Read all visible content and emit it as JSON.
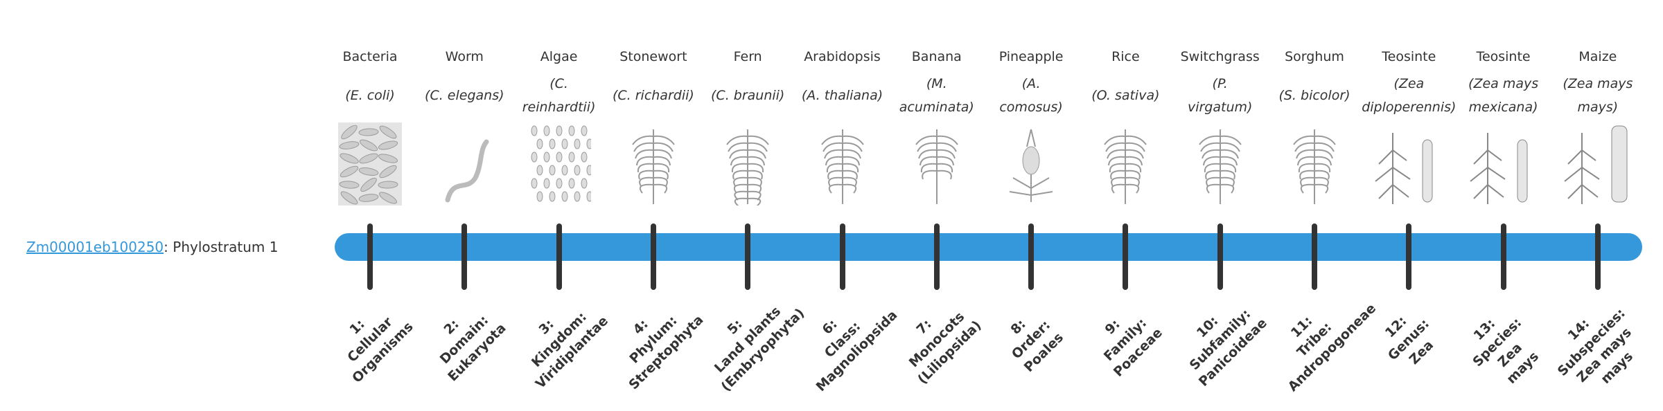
{
  "gene": {
    "id": "Zm00001eb100250",
    "suffix": ": Phylostratum 1"
  },
  "colors": {
    "bar": "#3498db",
    "tick": "#333333",
    "link": "#3498db"
  },
  "strata": [
    {
      "common": "Bacteria",
      "sci": "(E. coli)",
      "icon": "bacteria-illustration",
      "label": "1:\nCellular\nOrganisms"
    },
    {
      "common": "Worm",
      "sci": "(C. elegans)",
      "icon": "worm-illustration",
      "label": "2:\nDomain:\nEukaryota"
    },
    {
      "common": "Algae",
      "sci": "(C.\nreinhardtii)",
      "icon": "algae-illustration",
      "label": "3:\nKingdom:\nViridiplantae"
    },
    {
      "common": "Stonewort",
      "sci": "(C. richardii)",
      "icon": "stonewort-illustration",
      "label": "4:\nPhylum:\nStreptophyta"
    },
    {
      "common": "Fern",
      "sci": "(C. braunii)",
      "icon": "fern-illustration",
      "label": "5:\nLand plants\n(Embryophyta)"
    },
    {
      "common": "Arabidopsis",
      "sci": "(A. thaliana)",
      "icon": "arabidopsis-illustration",
      "label": "6:\nClass:\nMagnoliopsida"
    },
    {
      "common": "Banana",
      "sci": "(M.\nacuminata)",
      "icon": "banana-illustration",
      "label": "7:\nMonocots\n(Liliopsida)"
    },
    {
      "common": "Pineapple",
      "sci": "(A.\ncomosus)",
      "icon": "pineapple-illustration",
      "label": "8:\nOrder:\nPoales"
    },
    {
      "common": "Rice",
      "sci": "(O. sativa)",
      "icon": "rice-illustration",
      "label": "9:\nFamily:\nPoaceae"
    },
    {
      "common": "Switchgrass",
      "sci": "(P.\nvirgatum)",
      "icon": "switchgrass-illustration",
      "label": "10:\nSubfamily:\nPanicoideae"
    },
    {
      "common": "Sorghum",
      "sci": "(S. bicolor)",
      "icon": "sorghum-illustration",
      "label": "11:\nTribe:\nAndropogoneae"
    },
    {
      "common": "Teosinte",
      "sci": "(Zea\ndiploperennis)",
      "icon": "teosinte-illustration",
      "label": "12:\nGenus:\nZea"
    },
    {
      "common": "Teosinte",
      "sci": "(Zea mays\nmexicana)",
      "icon": "teosinte-illustration",
      "label": "13:\nSpecies:\nZea\nmays"
    },
    {
      "common": "Maize",
      "sci": "(Zea mays\nmays)",
      "icon": "maize-illustration",
      "label": "14:\nSubspecies:\nZea mays\nmays"
    }
  ]
}
